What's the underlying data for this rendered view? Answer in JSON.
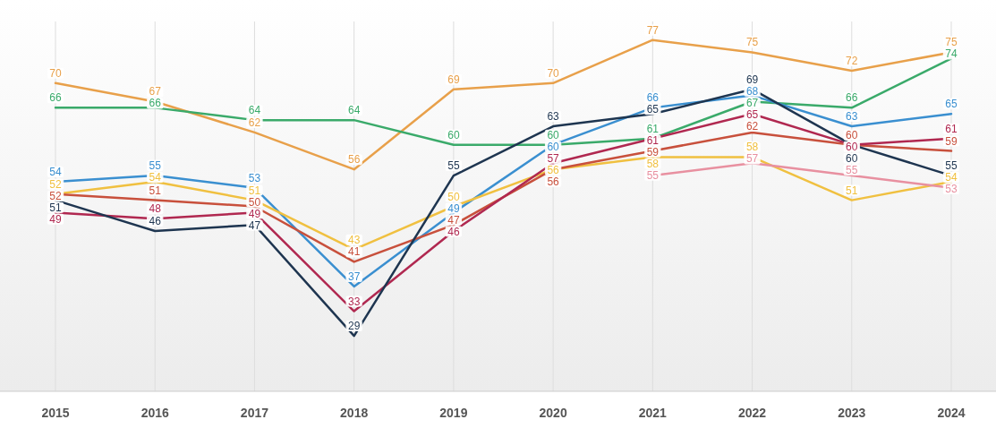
{
  "chart_data": {
    "type": "line",
    "categories": [
      "2015",
      "2016",
      "2017",
      "2018",
      "2019",
      "2020",
      "2021",
      "2022",
      "2023",
      "2024"
    ],
    "ylim": [
      20,
      80
    ],
    "tick_labels": "x",
    "grid": "x",
    "data_labels": true,
    "line_style": "solid",
    "series": [
      {
        "color": "#e8a04a",
        "values": [
          70,
          67,
          62,
          56,
          69,
          70,
          77,
          75,
          72,
          75
        ]
      },
      {
        "color": "#3aaa6a",
        "values": [
          66,
          66,
          64,
          64,
          60,
          60,
          61,
          67,
          66,
          74
        ]
      },
      {
        "color": "#3a8fd0",
        "values": [
          54,
          55,
          53,
          37,
          49,
          60,
          66,
          68,
          63,
          65
        ]
      },
      {
        "color": "#f0c040",
        "values": [
          52,
          54,
          51,
          43,
          50,
          56,
          58,
          58,
          51,
          54
        ]
      },
      {
        "color": "#c8503c",
        "values": [
          52,
          51,
          50,
          41,
          47,
          56,
          59,
          62,
          60,
          59
        ]
      },
      {
        "color": "#b02850",
        "values": [
          49,
          48,
          49,
          33,
          46,
          57,
          61,
          65,
          60,
          61
        ]
      },
      {
        "color": "#1e3550",
        "values": [
          51,
          46,
          47,
          29,
          55,
          63,
          65,
          69,
          60,
          55
        ]
      },
      {
        "color": "#e890a0",
        "values": [
          null,
          null,
          null,
          null,
          null,
          null,
          55,
          57,
          55,
          53
        ]
      }
    ]
  }
}
